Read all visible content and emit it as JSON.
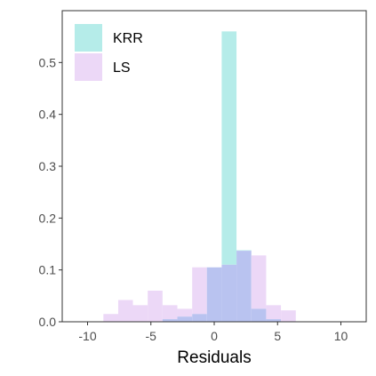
{
  "chart_data": {
    "type": "histogram",
    "title": "",
    "xlabel": "Residuals",
    "ylabel": "",
    "xlim": [
      -12.0,
      12.0
    ],
    "ylim": [
      0,
      0.6
    ],
    "x_ticks": [
      -10,
      -5,
      0,
      5,
      10
    ],
    "y_ticks": [
      0.0,
      0.1,
      0.2,
      0.3,
      0.4,
      0.5
    ],
    "x_tick_labels": [
      "-10",
      "-5",
      "0",
      "5",
      "10"
    ],
    "y_tick_labels": [
      "0.0",
      "0.1",
      "0.2",
      "0.3",
      "0.4",
      "0.5"
    ],
    "grid": false,
    "legend_position": "top-left",
    "bin_edges": [
      -8.75,
      -7.58,
      -6.42,
      -5.25,
      -4.08,
      -2.91,
      -1.74,
      -0.58,
      0.59,
      1.76,
      2.93,
      4.1,
      5.27,
      6.44
    ],
    "series": [
      {
        "name": "KRR",
        "color": "#b5ece9",
        "values": [
          0.0,
          0.0,
          0.0,
          0.0,
          0.005,
          0.01,
          0.015,
          0.105,
          0.56,
          0.138,
          0.025,
          0.005,
          0.0
        ]
      },
      {
        "name": "LS",
        "color": "#ecd8f7",
        "values": [
          0.015,
          0.042,
          0.032,
          0.06,
          0.032,
          0.025,
          0.105,
          0.105,
          0.11,
          0.137,
          0.128,
          0.032,
          0.022
        ]
      }
    ],
    "overlap_color": "#b9c3f0"
  }
}
